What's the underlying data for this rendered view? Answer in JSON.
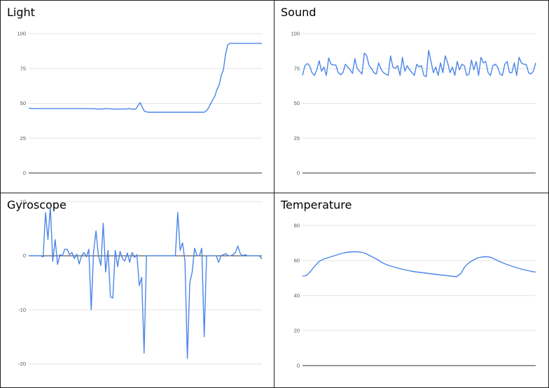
{
  "chart_data": [
    {
      "type": "line",
      "title": "Light",
      "ylim": [
        0,
        100
      ],
      "yticks": [
        0,
        25,
        50,
        75,
        100
      ],
      "grid": true,
      "series": [
        {
          "color": "#4a86e8",
          "values": [
            46.5,
            46.3,
            46.2,
            46.2,
            46.2,
            46.2,
            46.2,
            46.2,
            46.2,
            46.2,
            46.2,
            46.2,
            46.2,
            46.2,
            46.2,
            46.2,
            46.2,
            46.2,
            46.2,
            46.2,
            46.2,
            46.2,
            46.2,
            46.2,
            46.2,
            46.2,
            46.2,
            46.2,
            46.2,
            46.2,
            46.0,
            46.2,
            45.8,
            46.0,
            45.8,
            46.1,
            46.2,
            46.2,
            46.0,
            45.9,
            45.9,
            45.9,
            45.9,
            45.9,
            46.0,
            45.9,
            46.0,
            46.2,
            45.8,
            45.9,
            45.8,
            48.0,
            50.5,
            47.5,
            44.5,
            43.9,
            43.6,
            43.6,
            43.6,
            43.6,
            43.6,
            43.6,
            43.6,
            43.6,
            43.6,
            43.6,
            43.6,
            43.6,
            43.6,
            43.6,
            43.6,
            43.6,
            43.6,
            43.6,
            43.6,
            43.6,
            43.6,
            43.6,
            43.6,
            43.6,
            43.6,
            43.6,
            43.6,
            44.5,
            46.5,
            49.5,
            52.5,
            55.0,
            60.0,
            63.0,
            70.0,
            74.0,
            85.0,
            92.0,
            93.0,
            93.0,
            93.0,
            93.0,
            93.0,
            93.0,
            93.0,
            93.0,
            93.0,
            93.0,
            93.0,
            93.0,
            93.0,
            93.0,
            93.0,
            93.0
          ]
        }
      ]
    },
    {
      "type": "line",
      "title": "Sound",
      "ylim": [
        0,
        100
      ],
      "yticks": [
        0,
        25,
        50,
        75,
        100
      ],
      "grid": true,
      "series": [
        {
          "color": "#4a86e8",
          "values": [
            70,
            77,
            78.5,
            77,
            72,
            70,
            74,
            80.5,
            73,
            76,
            70,
            82.5,
            78,
            77.5,
            77.5,
            72,
            70.5,
            72,
            78,
            76,
            74,
            71.5,
            82,
            75,
            73,
            71,
            86,
            84,
            77,
            75,
            72,
            71,
            79,
            74.5,
            72,
            71,
            70,
            84,
            76,
            75,
            77,
            70,
            83,
            73,
            77,
            74,
            72,
            70,
            78,
            76,
            77,
            70,
            69,
            88,
            80,
            72,
            76,
            70,
            79,
            72,
            84,
            79,
            72,
            76,
            70,
            80,
            74,
            78,
            77,
            70,
            71,
            81,
            74,
            80,
            70,
            83,
            79,
            80,
            72,
            70,
            77,
            78,
            76,
            71,
            70,
            78,
            80,
            72,
            72,
            79,
            70,
            83,
            79,
            78,
            78,
            72,
            71,
            73,
            79
          ]
        }
      ]
    },
    {
      "type": "line",
      "title": "Gyroscope",
      "ylim": [
        -22,
        10
      ],
      "yticks": [
        -20,
        -10,
        0,
        10
      ],
      "grid": true,
      "series": [
        {
          "color": "#4a86e8",
          "values": [
            0,
            0,
            0,
            0,
            0,
            0,
            -0.2,
            8,
            3,
            9,
            -1,
            3,
            -1.6,
            0.2,
            0,
            1.2,
            1.2,
            0.2,
            0.6,
            -0.5,
            0.3,
            -1.5,
            0,
            0.6,
            -0.2,
            1.2,
            -10,
            0.8,
            4.6,
            0,
            -1.8,
            6,
            -3,
            1,
            -7.6,
            -7.8,
            1,
            -2,
            0.8,
            -0.5,
            -1,
            0.5,
            -1.2,
            0.6,
            -0.3,
            0.2,
            -5.5,
            -4,
            -18,
            0,
            0,
            0,
            0,
            0,
            0,
            0,
            0,
            0,
            0,
            0,
            0,
            0,
            8,
            1,
            2.4,
            -1,
            -19,
            -5,
            -3,
            1.4,
            0,
            0,
            1.4,
            -15,
            0,
            0,
            0,
            0,
            0,
            -1.2,
            0,
            0.2,
            0.4,
            0,
            0,
            0.2,
            0.6,
            1.8,
            0.4,
            0,
            0.2,
            0,
            0,
            0,
            0,
            0,
            0,
            -0.6
          ]
        }
      ]
    },
    {
      "type": "line",
      "title": "Temperature",
      "ylim": [
        0,
        80
      ],
      "yticks": [
        0,
        20,
        40,
        60,
        80
      ],
      "grid": true,
      "series": [
        {
          "color": "#4a86e8",
          "values": [
            51,
            51.5,
            54,
            57,
            59.5,
            60.8,
            61.5,
            62.3,
            63,
            63.8,
            64.4,
            64.8,
            65,
            65,
            64.8,
            64.2,
            63,
            61.8,
            60.5,
            59,
            57.8,
            57,
            56.3,
            55.6,
            55,
            54.5,
            54,
            53.6,
            53.3,
            53,
            52.7,
            52.4,
            52.1,
            51.8,
            51.6,
            51.3,
            51,
            50.8,
            52.5,
            56.5,
            58.8,
            60.2,
            61.5,
            62,
            62.2,
            62,
            61,
            59.8,
            58.8,
            57.8,
            57,
            56.2,
            55.5,
            54.8,
            54.3,
            53.8,
            53.4
          ]
        }
      ]
    }
  ]
}
